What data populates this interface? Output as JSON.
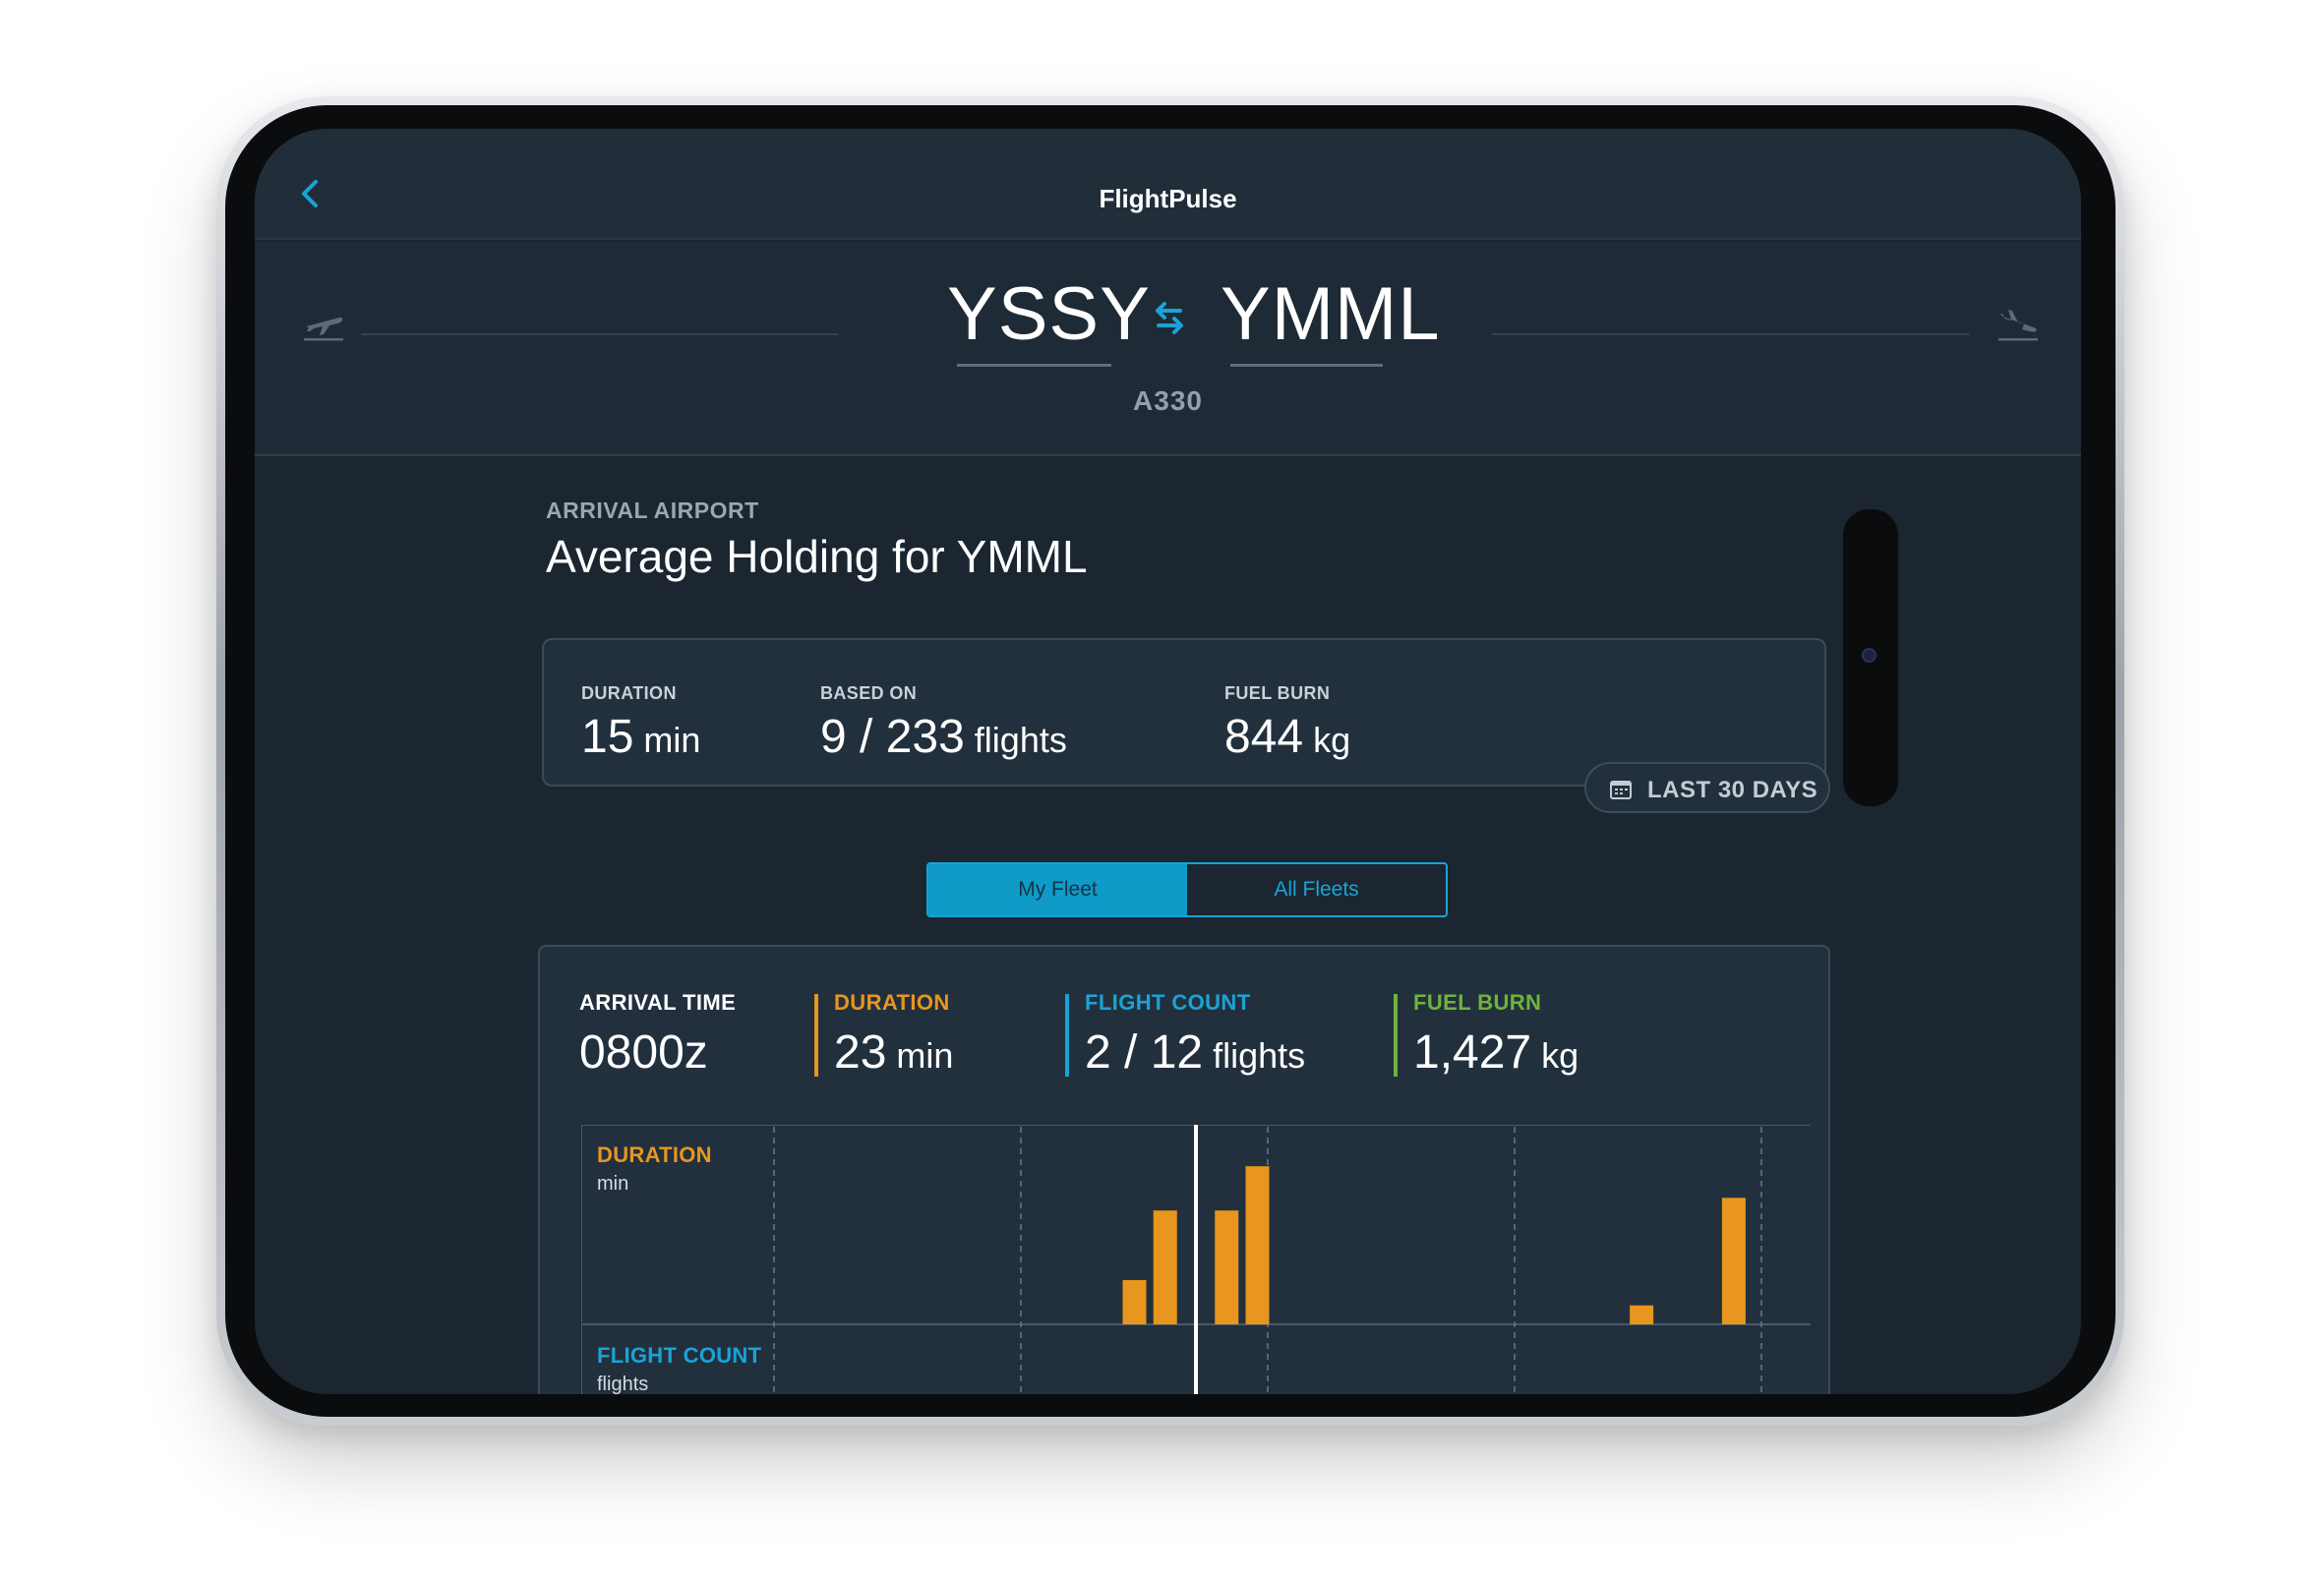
{
  "app": {
    "title": "FlightPulse"
  },
  "route": {
    "origin": "YSSY",
    "destination": "YMML",
    "aircraft": "A330"
  },
  "section": {
    "label": "ARRIVAL AIRPORT",
    "title": "Average Holding for YMML"
  },
  "summary": {
    "duration": {
      "label": "DURATION",
      "value": "15",
      "unit": " min"
    },
    "based_on": {
      "label": "BASED ON",
      "value": "9 / 233",
      "unit": " flights"
    },
    "fuel_burn": {
      "label": "FUEL BURN",
      "value": "844",
      "unit": " kg"
    },
    "range_button": "LAST 30 DAYS"
  },
  "fleet_toggle": {
    "options": [
      "My Fleet",
      "All Fleets"
    ],
    "selected": "My Fleet"
  },
  "detail": {
    "arrival_time": {
      "label": "ARRIVAL TIME",
      "value": "0800z"
    },
    "duration": {
      "label": "DURATION",
      "value": "23",
      "unit": " min"
    },
    "flight_count": {
      "label": "FLIGHT COUNT",
      "value": "2 / 12",
      "unit": " flights"
    },
    "fuel_burn": {
      "label": "FUEL BURN",
      "value": "1,427",
      "unit": " kg"
    }
  },
  "colors": {
    "accent": "#1aa3d6",
    "duration": "#e8961d",
    "flight_count": "#1aa3d6",
    "fuel_burn": "#6fb33c"
  },
  "chart_data": {
    "type": "bar",
    "panels": [
      {
        "title": "DURATION",
        "unit": "min"
      },
      {
        "title": "FLIGHT COUNT",
        "unit": "flights"
      }
    ],
    "series": [
      {
        "name": "DURATION",
        "x": [
          3.6,
          3.8,
          4.2,
          4.4,
          6.9,
          7.5
        ],
        "values": [
          7,
          18,
          18,
          25,
          3,
          20
        ]
      }
    ],
    "ylim": [
      0,
      30
    ],
    "xlim": [
      0,
      8
    ],
    "selected_x": 4.0,
    "grid": true
  }
}
